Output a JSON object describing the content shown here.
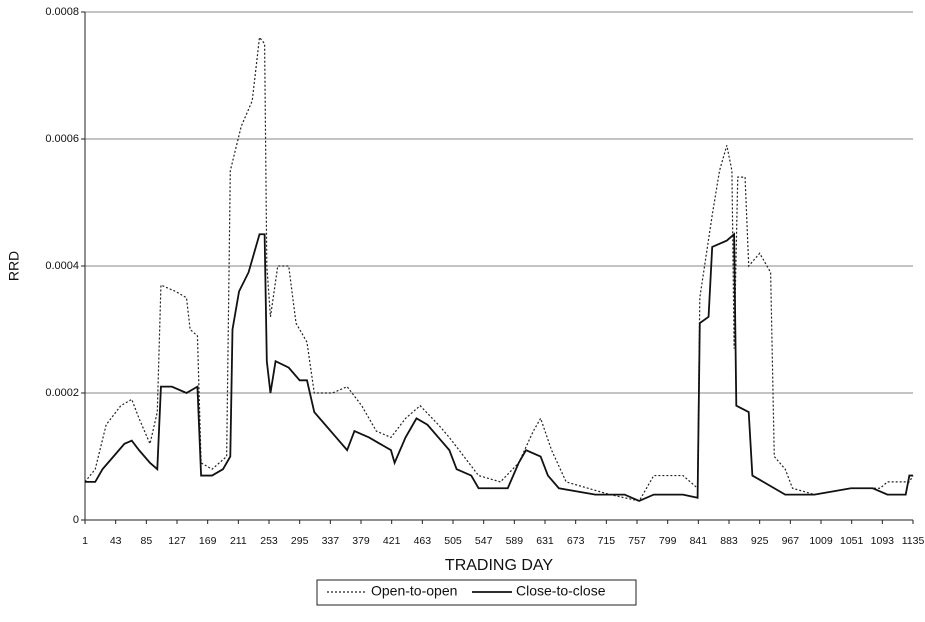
{
  "chart_data": {
    "type": "line",
    "x_label": "TRADING DAY",
    "y_label": "RRD",
    "xlim": [
      1,
      1135
    ],
    "xticks": [
      1,
      43,
      85,
      127,
      169,
      211,
      253,
      295,
      337,
      379,
      421,
      463,
      505,
      547,
      589,
      631,
      673,
      715,
      757,
      799,
      841,
      883,
      925,
      967,
      1009,
      1051,
      1093,
      1135
    ],
    "ylim": [
      0,
      0.0008
    ],
    "yticks": [
      0,
      0.0002,
      0.0004,
      0.0006,
      0.0008
    ],
    "grid": true,
    "legend": "bottom",
    "series": [
      {
        "name": "Open-to-open",
        "color": "#222222",
        "style": "dotted",
        "x": [
          1,
          15,
          30,
          50,
          65,
          75,
          90,
          100,
          105,
          125,
          140,
          145,
          155,
          160,
          175,
          195,
          200,
          215,
          230,
          240,
          247,
          250,
          255,
          265,
          280,
          290,
          305,
          315,
          340,
          360,
          380,
          400,
          420,
          440,
          460,
          485,
          500,
          520,
          540,
          570,
          595,
          615,
          625,
          640,
          660,
          720,
          760,
          780,
          820,
          840,
          843,
          860,
          870,
          880,
          887,
          890,
          895,
          905,
          910,
          925,
          940,
          945,
          960,
          970,
          1000,
          1050,
          1090,
          1100,
          1130,
          1135
        ],
        "values": [
          6e-05,
          8e-05,
          0.00015,
          0.00018,
          0.00019,
          0.00016,
          0.00012,
          0.00017,
          0.00037,
          0.00036,
          0.00035,
          0.0003,
          0.00029,
          9e-05,
          8e-05,
          0.0001,
          0.00055,
          0.00062,
          0.00066,
          0.00076,
          0.00075,
          0.0004,
          0.00032,
          0.0004,
          0.0004,
          0.00031,
          0.00028,
          0.0002,
          0.0002,
          0.00021,
          0.00018,
          0.00014,
          0.00013,
          0.00016,
          0.00018,
          0.00015,
          0.00013,
          0.0001,
          7e-05,
          6e-05,
          9e-05,
          0.00014,
          0.00016,
          0.00011,
          6e-05,
          4e-05,
          3e-05,
          7e-05,
          7e-05,
          5e-05,
          0.00035,
          0.00048,
          0.00055,
          0.00059,
          0.00055,
          0.00027,
          0.00054,
          0.00054,
          0.0004,
          0.00042,
          0.00039,
          0.0001,
          8e-05,
          5e-05,
          4e-05,
          5e-05,
          5e-05,
          6e-05,
          6e-05,
          7e-05
        ]
      },
      {
        "name": "Close-to-close",
        "color": "#111111",
        "style": "solid",
        "x": [
          1,
          15,
          25,
          40,
          55,
          65,
          75,
          90,
          100,
          105,
          120,
          140,
          155,
          160,
          175,
          190,
          200,
          203,
          212,
          225,
          240,
          247,
          250,
          255,
          262,
          280,
          295,
          305,
          315,
          330,
          345,
          360,
          370,
          390,
          405,
          420,
          425,
          440,
          455,
          470,
          485,
          500,
          510,
          530,
          540,
          560,
          580,
          595,
          605,
          625,
          635,
          650,
          700,
          740,
          760,
          780,
          820,
          840,
          843,
          855,
          860,
          880,
          890,
          893,
          910,
          915,
          930,
          960,
          1000,
          1050,
          1080,
          1100,
          1125,
          1130,
          1135
        ],
        "values": [
          6e-05,
          6e-05,
          8e-05,
          0.0001,
          0.00012,
          0.000125,
          0.00011,
          9e-05,
          8e-05,
          0.00021,
          0.00021,
          0.0002,
          0.00021,
          7e-05,
          7e-05,
          8e-05,
          0.0001,
          0.0003,
          0.00036,
          0.00039,
          0.00045,
          0.00045,
          0.00025,
          0.0002,
          0.00025,
          0.00024,
          0.00022,
          0.00022,
          0.00017,
          0.00015,
          0.00013,
          0.00011,
          0.00014,
          0.00013,
          0.00012,
          0.00011,
          9e-05,
          0.00013,
          0.00016,
          0.00015,
          0.00013,
          0.00011,
          8e-05,
          7e-05,
          5e-05,
          5e-05,
          5e-05,
          9e-05,
          0.00011,
          0.0001,
          7e-05,
          5e-05,
          4e-05,
          4e-05,
          3e-05,
          4e-05,
          4e-05,
          3.5e-05,
          0.00031,
          0.00032,
          0.00043,
          0.00044,
          0.00045,
          0.00018,
          0.00017,
          7e-05,
          6e-05,
          4e-05,
          4e-05,
          5e-05,
          5e-05,
          4e-05,
          4e-05,
          7e-05,
          7e-05
        ]
      }
    ]
  }
}
